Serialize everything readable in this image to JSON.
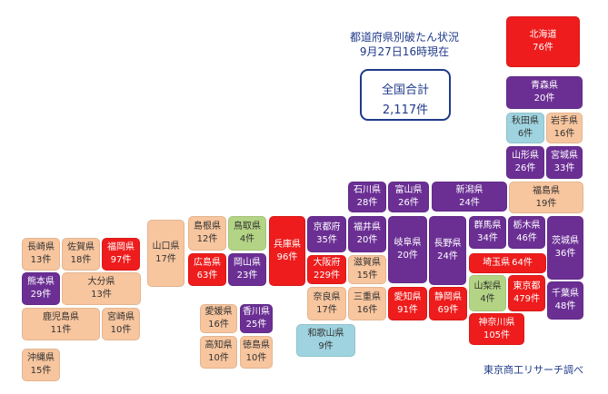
{
  "header": {
    "title_line1": "都道府県別破たん状況",
    "title_line2": "9月27日16時現在"
  },
  "total": {
    "label": "全国合計",
    "value": "2,117件"
  },
  "credit": "東京商工リサーチ調べ",
  "colors": {
    "red": "#ee1c1c",
    "purple": "#6b2f94",
    "orange": "#f7c59e",
    "green": "#b4d485",
    "blue": "#9ed3df"
  },
  "prefectures": [
    {
      "name": "北海道",
      "count": "76件",
      "color": "red"
    },
    {
      "name": "青森県",
      "count": "20件",
      "color": "purple"
    },
    {
      "name": "秋田県",
      "count": "6件",
      "color": "blue"
    },
    {
      "name": "岩手県",
      "count": "16件",
      "color": "orange"
    },
    {
      "name": "山形県",
      "count": "26件",
      "color": "purple"
    },
    {
      "name": "宮城県",
      "count": "33件",
      "color": "purple"
    },
    {
      "name": "福島県",
      "count": "19件",
      "color": "orange"
    },
    {
      "name": "新潟県",
      "count": "24件",
      "color": "purple"
    },
    {
      "name": "石川県",
      "count": "28件",
      "color": "purple"
    },
    {
      "name": "富山県",
      "count": "26件",
      "color": "purple"
    },
    {
      "name": "福井県",
      "count": "20件",
      "color": "purple"
    },
    {
      "name": "岐阜県",
      "count": "20件",
      "color": "purple"
    },
    {
      "name": "長野県",
      "count": "24件",
      "color": "purple"
    },
    {
      "name": "群馬県",
      "count": "34件",
      "color": "purple"
    },
    {
      "name": "栃木県",
      "count": "46件",
      "color": "purple"
    },
    {
      "name": "茨城県",
      "count": "36件",
      "color": "purple"
    },
    {
      "name": "埼玉県",
      "count": "64件",
      "color": "red"
    },
    {
      "name": "千葉県",
      "count": "48件",
      "color": "purple"
    },
    {
      "name": "東京都",
      "count": "479件",
      "color": "red"
    },
    {
      "name": "神奈川県",
      "count": "105件",
      "color": "red"
    },
    {
      "name": "山梨県",
      "count": "4件",
      "color": "green"
    },
    {
      "name": "静岡県",
      "count": "69件",
      "color": "red"
    },
    {
      "name": "愛知県",
      "count": "91件",
      "color": "red"
    },
    {
      "name": "三重県",
      "count": "16件",
      "color": "orange"
    },
    {
      "name": "滋賀県",
      "count": "15件",
      "color": "orange"
    },
    {
      "name": "京都府",
      "count": "35件",
      "color": "purple"
    },
    {
      "name": "大阪府",
      "count": "229件",
      "color": "red"
    },
    {
      "name": "奈良県",
      "count": "17件",
      "color": "orange"
    },
    {
      "name": "和歌山県",
      "count": "9件",
      "color": "blue"
    },
    {
      "name": "兵庫県",
      "count": "96件",
      "color": "red"
    },
    {
      "name": "鳥取県",
      "count": "4件",
      "color": "green"
    },
    {
      "name": "島根県",
      "count": "12件",
      "color": "orange"
    },
    {
      "name": "岡山県",
      "count": "23件",
      "color": "purple"
    },
    {
      "name": "広島県",
      "count": "63件",
      "color": "red"
    },
    {
      "name": "山口県",
      "count": "17件",
      "color": "orange"
    },
    {
      "name": "香川県",
      "count": "25件",
      "color": "purple"
    },
    {
      "name": "愛媛県",
      "count": "16件",
      "color": "orange"
    },
    {
      "name": "徳島県",
      "count": "10件",
      "color": "orange"
    },
    {
      "name": "高知県",
      "count": "10件",
      "color": "orange"
    },
    {
      "name": "福岡県",
      "count": "97件",
      "color": "red"
    },
    {
      "name": "佐賀県",
      "count": "18件",
      "color": "orange"
    },
    {
      "name": "長崎県",
      "count": "13件",
      "color": "orange"
    },
    {
      "name": "熊本県",
      "count": "29件",
      "color": "purple"
    },
    {
      "name": "大分県",
      "count": "13件",
      "color": "orange"
    },
    {
      "name": "宮崎県",
      "count": "10件",
      "color": "orange"
    },
    {
      "name": "鹿児島県",
      "count": "11件",
      "color": "orange"
    },
    {
      "name": "沖縄県",
      "count": "15件",
      "color": "orange"
    }
  ]
}
